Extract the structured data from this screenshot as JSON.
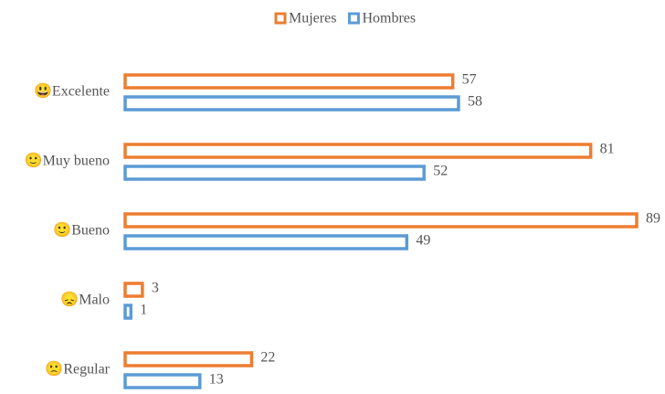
{
  "chart_data": {
    "type": "hbar",
    "categories": [
      "😃Excelente",
      "🙂Muy bueno",
      "🙂Bueno",
      "😞Malo",
      "🙁Regular"
    ],
    "series": [
      {
        "name": "Mujeres",
        "color": "#ed7d31",
        "values": [
          57,
          81,
          89,
          3,
          22
        ]
      },
      {
        "name": "Hombres",
        "color": "#5b9bd5",
        "values": [
          58,
          52,
          49,
          1,
          13
        ]
      }
    ],
    "legend": "top"
  }
}
